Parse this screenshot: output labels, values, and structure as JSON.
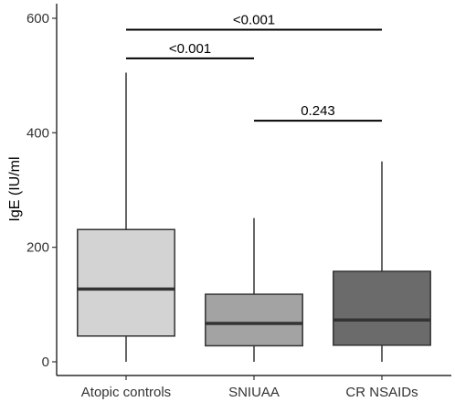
{
  "chart_data": {
    "type": "box",
    "title": "",
    "xlabel": "",
    "ylabel": "IgE (IU/ml",
    "ylim": [
      -5,
      625
    ],
    "yticks": [
      0,
      200,
      400,
      600
    ],
    "categories": [
      "Atopic controls",
      "SNIUAA",
      "CR NSAIDs"
    ],
    "boxes": [
      {
        "category": "Atopic controls",
        "min": 0,
        "q1": 45,
        "median": 127,
        "q3": 231,
        "max": 505,
        "fill": "#d3d3d3"
      },
      {
        "category": "SNIUAA",
        "min": 0,
        "q1": 28,
        "median": 67,
        "q3": 118,
        "max": 251,
        "fill": "#a3a3a3"
      },
      {
        "category": "CR NSAIDs",
        "min": 0,
        "q1": 29,
        "median": 73,
        "q3": 158,
        "max": 350,
        "fill": "#6b6b6b"
      }
    ],
    "comparisons": [
      {
        "from": 0,
        "to": 2,
        "y": 580,
        "label": "<0.001"
      },
      {
        "from": 0,
        "to": 1,
        "y": 530,
        "label": "<0.001"
      },
      {
        "from": 1,
        "to": 2,
        "y": 421,
        "label": "0.243"
      }
    ],
    "grid": false,
    "legend": "none"
  }
}
